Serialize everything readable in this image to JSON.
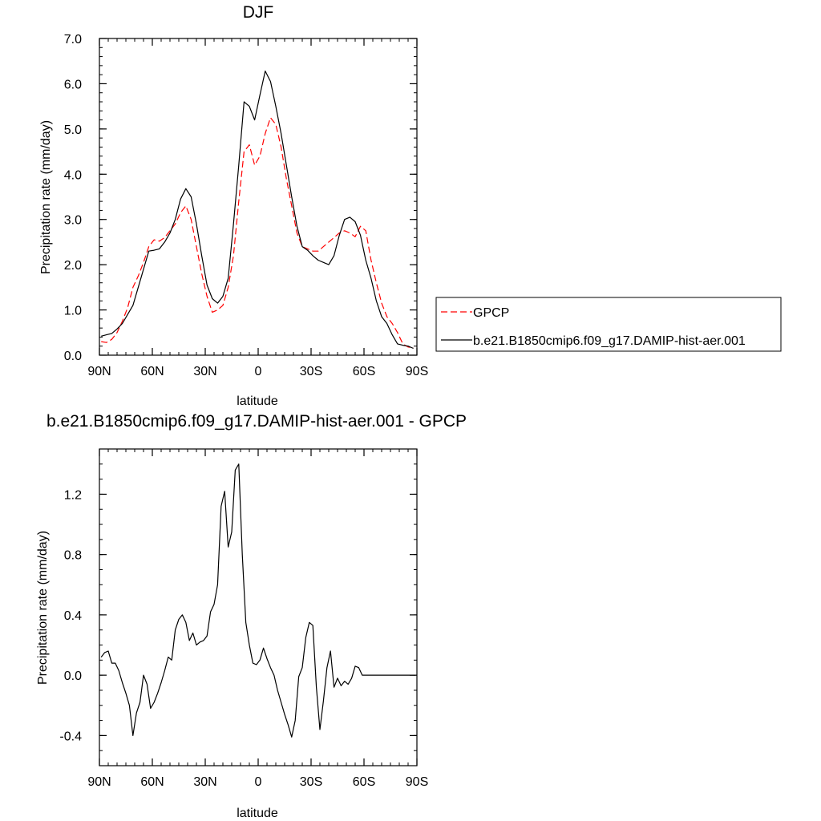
{
  "chart_data": [
    {
      "type": "line",
      "title": "DJF",
      "xlabel": "latitude",
      "ylabel": "Precipitation rate (mm/day)",
      "xlim": [
        -90,
        90
      ],
      "ylim": [
        0,
        7
      ],
      "xticks": [
        -90,
        -60,
        -30,
        0,
        30,
        60,
        90
      ],
      "xtick_labels": [
        "90N",
        "60N",
        "30N",
        "0",
        "30S",
        "60S",
        "90S"
      ],
      "yticks": [
        0,
        1,
        2,
        3,
        4,
        5,
        6,
        7
      ],
      "ytick_labels": [
        "0.0",
        "1.0",
        "2.0",
        "3.0",
        "4.0",
        "5.0",
        "6.0",
        "7.0"
      ],
      "legend_position": "right",
      "series": [
        {
          "name": "GPCP",
          "color": "#ff0000",
          "style": "dashed",
          "x": [
            -89,
            -86,
            -83,
            -80,
            -77,
            -74,
            -71,
            -68,
            -65,
            -62,
            -59,
            -56,
            -53,
            -50,
            -47,
            -44,
            -41,
            -38,
            -35,
            -32,
            -29,
            -26,
            -23,
            -20,
            -17,
            -14,
            -11,
            -8,
            -5,
            -2,
            1,
            4,
            7,
            10,
            13,
            16,
            19,
            22,
            25,
            28,
            31,
            34,
            37,
            40,
            43,
            46,
            49,
            52,
            55,
            58,
            61,
            64,
            67,
            70,
            73,
            76,
            79,
            82,
            85,
            88
          ],
          "y": [
            0.3,
            0.28,
            0.35,
            0.5,
            0.75,
            1.05,
            1.5,
            1.75,
            2.05,
            2.4,
            2.55,
            2.52,
            2.6,
            2.75,
            2.9,
            3.15,
            3.3,
            3.0,
            2.4,
            1.8,
            1.3,
            0.95,
            1.0,
            1.1,
            1.5,
            2.2,
            3.4,
            4.5,
            4.65,
            4.2,
            4.4,
            4.9,
            5.25,
            5.1,
            4.6,
            3.9,
            3.3,
            2.7,
            2.4,
            2.35,
            2.3,
            2.3,
            2.4,
            2.5,
            2.6,
            2.7,
            2.75,
            2.7,
            2.62,
            2.85,
            2.75,
            2.1,
            1.6,
            1.15,
            0.85,
            0.7,
            0.5,
            0.25,
            0.18,
            0.16
          ]
        },
        {
          "name": "b.e21.B1850cmip6.f09_g17.DAMIP-hist-aer.001",
          "color": "#000000",
          "style": "solid",
          "x": [
            -89,
            -86,
            -83,
            -80,
            -77,
            -74,
            -71,
            -68,
            -65,
            -62,
            -59,
            -56,
            -53,
            -50,
            -47,
            -44,
            -41,
            -38,
            -35,
            -32,
            -29,
            -26,
            -23,
            -20,
            -17,
            -14,
            -11,
            -8,
            -5,
            -2,
            1,
            4,
            7,
            10,
            13,
            16,
            19,
            22,
            25,
            28,
            31,
            34,
            37,
            40,
            43,
            46,
            49,
            52,
            55,
            58,
            61,
            64,
            67,
            70,
            73,
            76,
            79,
            82,
            85,
            88
          ],
          "y": [
            0.42,
            0.45,
            0.48,
            0.58,
            0.7,
            0.9,
            1.1,
            1.5,
            1.9,
            2.3,
            2.32,
            2.35,
            2.5,
            2.7,
            3.0,
            3.45,
            3.68,
            3.5,
            2.9,
            2.2,
            1.55,
            1.25,
            1.15,
            1.3,
            1.7,
            2.9,
            4.2,
            5.6,
            5.5,
            5.2,
            5.75,
            6.28,
            6.05,
            5.5,
            4.9,
            4.2,
            3.5,
            2.85,
            2.4,
            2.32,
            2.2,
            2.1,
            2.05,
            2.0,
            2.2,
            2.65,
            3.0,
            3.05,
            2.95,
            2.65,
            2.1,
            1.7,
            1.2,
            0.85,
            0.7,
            0.45,
            0.25,
            0.22,
            0.2,
            0.15
          ]
        }
      ]
    },
    {
      "type": "line",
      "title": "b.e21.B1850cmip6.f09_g17.DAMIP-hist-aer.001 - GPCP",
      "xlabel": "latitude",
      "ylabel": "Precipitation rate (mm/day)",
      "xlim": [
        -90,
        90
      ],
      "ylim": [
        -0.6,
        1.5
      ],
      "xticks": [
        -90,
        -60,
        -30,
        0,
        30,
        60,
        90
      ],
      "xtick_labels": [
        "90N",
        "60N",
        "30N",
        "0",
        "30S",
        "60S",
        "90S"
      ],
      "yticks": [
        -0.4,
        0,
        0.4,
        0.8,
        1.2
      ],
      "ytick_labels": [
        "-0.4",
        "0.0",
        "0.4",
        "0.8",
        "1.2"
      ],
      "series": [
        {
          "color": "#000000",
          "style": "solid",
          "x": [
            -89,
            -87,
            -85,
            -83,
            -81,
            -79,
            -77,
            -75,
            -73,
            -71,
            -69,
            -67,
            -65,
            -63,
            -61,
            -59,
            -57,
            -55,
            -53,
            -51,
            -49,
            -47,
            -45,
            -43,
            -41,
            -39,
            -37,
            -35,
            -33,
            -31,
            -29,
            -27,
            -25,
            -23,
            -21,
            -19,
            -17,
            -15,
            -13,
            -11,
            -9,
            -7,
            -5,
            -3,
            -1,
            1,
            3,
            5,
            7,
            9,
            11,
            13,
            15,
            17,
            19,
            21,
            23,
            25,
            27,
            29,
            31,
            33,
            35,
            37,
            39,
            41,
            43,
            45,
            47,
            49,
            51,
            53,
            55,
            57,
            59,
            61,
            63,
            65,
            67,
            69,
            71,
            73,
            75,
            77,
            79,
            81,
            83,
            85,
            87,
            89
          ],
          "y": [
            0.12,
            0.15,
            0.16,
            0.08,
            0.08,
            0.03,
            -0.05,
            -0.12,
            -0.2,
            -0.4,
            -0.25,
            -0.18,
            0.0,
            -0.06,
            -0.22,
            -0.18,
            -0.12,
            -0.05,
            0.03,
            0.12,
            0.1,
            0.3,
            0.37,
            0.4,
            0.35,
            0.23,
            0.28,
            0.2,
            0.22,
            0.23,
            0.26,
            0.42,
            0.47,
            0.6,
            1.12,
            1.22,
            0.85,
            0.95,
            1.36,
            1.4,
            0.8,
            0.35,
            0.2,
            0.08,
            0.07,
            0.1,
            0.18,
            0.11,
            0.05,
            0.0,
            -0.1,
            -0.18,
            -0.26,
            -0.33,
            -0.41,
            -0.3,
            -0.01,
            0.05,
            0.25,
            0.35,
            0.33,
            -0.08,
            -0.36,
            -0.17,
            0.05,
            0.16,
            -0.08,
            -0.02,
            -0.07,
            -0.04,
            -0.06,
            -0.02,
            0.06,
            0.05,
            0.0,
            0.0,
            0.0,
            0.0,
            0.0,
            0.0,
            0.0,
            0.0,
            0.0,
            0.0,
            0.0,
            0.0,
            0.0,
            0.0,
            0.0,
            0.0
          ]
        }
      ]
    }
  ]
}
